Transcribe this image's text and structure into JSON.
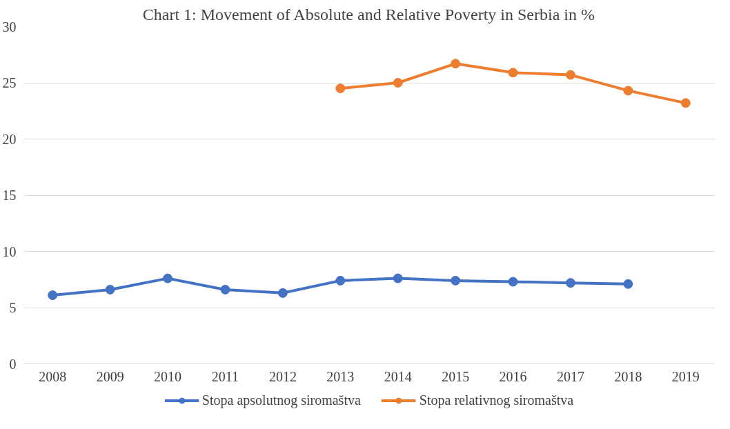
{
  "chart_data": {
    "type": "line",
    "title": "Chart 1: Movement of Absolute and Relative Poverty in Serbia in %",
    "categories": [
      "2008",
      "2009",
      "2010",
      "2011",
      "2012",
      "2013",
      "2014",
      "2015",
      "2016",
      "2017",
      "2018",
      "2019"
    ],
    "series": [
      {
        "name": "Stopa apsolutnog siromaštva",
        "color": "#4472c4",
        "values": [
          6.1,
          6.6,
          7.6,
          6.6,
          6.3,
          7.4,
          7.6,
          7.4,
          7.3,
          7.2,
          7.1,
          null
        ]
      },
      {
        "name": "Stopa relativnog siromaštva",
        "color": "#ed7d31",
        "values": [
          null,
          null,
          null,
          null,
          null,
          24.5,
          25.0,
          26.7,
          25.9,
          25.7,
          24.3,
          23.2
        ]
      }
    ],
    "ylim": [
      0,
      30
    ],
    "yticks": [
      0,
      5,
      10,
      15,
      20,
      25,
      30
    ],
    "grid": "y",
    "legend": "bottom",
    "marker": "circle",
    "line_style": "solid"
  }
}
